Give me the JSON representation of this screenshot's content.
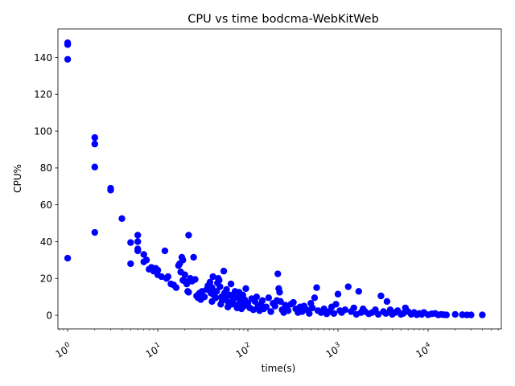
{
  "chart_data": {
    "type": "scatter",
    "title": "CPU vs time bodcma-WebKitWeb",
    "xlabel": "time(s)",
    "ylabel": "CPU%",
    "xscale": "log",
    "xlim": [
      0.78,
      65000
    ],
    "ylim": [
      -7.4,
      155.5
    ],
    "x_ticks": [
      {
        "value": 1,
        "label": "10^0"
      },
      {
        "value": 10,
        "label": "10^1"
      },
      {
        "value": 100,
        "label": "10^2"
      },
      {
        "value": 1000,
        "label": "10^3"
      },
      {
        "value": 10000,
        "label": "10^4"
      }
    ],
    "y_ticks": [
      0,
      20,
      40,
      60,
      80,
      100,
      120,
      140
    ],
    "grid": false,
    "marker_color": "#0000ff",
    "points": [
      [
        1,
        148
      ],
      [
        1,
        147
      ],
      [
        1,
        139
      ],
      [
        1,
        31
      ],
      [
        2,
        96.5
      ],
      [
        2,
        93
      ],
      [
        2,
        80.5
      ],
      [
        2,
        45
      ],
      [
        3,
        69
      ],
      [
        3,
        68
      ],
      [
        4,
        52.5
      ],
      [
        5,
        39.5
      ],
      [
        5,
        28
      ],
      [
        6,
        43.5
      ],
      [
        6,
        40
      ],
      [
        6,
        36
      ],
      [
        6,
        35
      ],
      [
        7,
        33
      ],
      [
        7,
        29
      ],
      [
        7.5,
        30
      ],
      [
        8,
        25
      ],
      [
        8.5,
        26
      ],
      [
        9,
        24
      ],
      [
        9.5,
        25.5
      ],
      [
        10,
        22
      ],
      [
        10,
        24.5
      ],
      [
        11,
        21
      ],
      [
        12,
        35
      ],
      [
        12.5,
        20
      ],
      [
        13,
        21
      ],
      [
        14,
        17
      ],
      [
        15,
        16.5
      ],
      [
        16,
        15
      ],
      [
        17,
        27
      ],
      [
        17.5,
        28
      ],
      [
        18,
        23.5
      ],
      [
        18.5,
        31.5
      ],
      [
        19,
        30
      ],
      [
        19,
        19
      ],
      [
        20,
        18.5
      ],
      [
        20,
        22
      ],
      [
        21,
        17
      ],
      [
        21.5,
        13
      ],
      [
        22,
        12.5
      ],
      [
        22,
        43.5
      ],
      [
        23,
        20
      ],
      [
        24,
        18.5
      ],
      [
        25,
        31.5
      ],
      [
        26,
        19.5
      ],
      [
        27,
        10.5
      ],
      [
        28,
        9.5
      ],
      [
        29,
        12
      ],
      [
        30,
        8.5
      ],
      [
        31,
        13
      ],
      [
        33,
        10
      ],
      [
        35,
        14
      ],
      [
        36,
        16
      ],
      [
        38,
        18
      ],
      [
        39,
        12
      ],
      [
        40,
        7.5
      ],
      [
        40,
        15
      ],
      [
        41,
        21
      ],
      [
        42,
        11
      ],
      [
        44,
        9.5
      ],
      [
        45,
        13
      ],
      [
        46,
        17.5
      ],
      [
        47,
        20
      ],
      [
        48,
        19
      ],
      [
        49,
        15.5
      ],
      [
        50,
        6
      ],
      [
        51,
        10
      ],
      [
        52,
        8
      ],
      [
        54,
        24
      ],
      [
        55,
        12
      ],
      [
        57,
        9
      ],
      [
        58,
        14
      ],
      [
        60,
        4.5
      ],
      [
        61,
        7
      ],
      [
        63,
        11
      ],
      [
        65,
        17
      ],
      [
        66,
        6
      ],
      [
        68,
        8
      ],
      [
        70,
        10
      ],
      [
        72,
        13
      ],
      [
        74,
        5.5
      ],
      [
        76,
        4
      ],
      [
        78,
        9.5
      ],
      [
        80,
        12.5
      ],
      [
        82,
        7
      ],
      [
        85,
        3.5
      ],
      [
        88,
        11
      ],
      [
        90,
        5
      ],
      [
        92,
        8.5
      ],
      [
        95,
        14.5
      ],
      [
        100,
        6.5
      ],
      [
        105,
        4
      ],
      [
        110,
        9
      ],
      [
        115,
        3
      ],
      [
        120,
        7.5
      ],
      [
        125,
        10
      ],
      [
        130,
        5
      ],
      [
        135,
        2.5
      ],
      [
        140,
        6
      ],
      [
        145,
        8
      ],
      [
        150,
        3.5
      ],
      [
        160,
        4.5
      ],
      [
        170,
        9.5
      ],
      [
        180,
        2
      ],
      [
        190,
        6.5
      ],
      [
        200,
        5
      ],
      [
        210,
        8
      ],
      [
        215,
        22.5
      ],
      [
        220,
        14.5
      ],
      [
        225,
        12.5
      ],
      [
        230,
        7.5
      ],
      [
        240,
        3
      ],
      [
        250,
        1.5
      ],
      [
        260,
        5.5
      ],
      [
        270,
        4
      ],
      [
        280,
        2.5
      ],
      [
        300,
        6
      ],
      [
        320,
        7
      ],
      [
        340,
        3.5
      ],
      [
        360,
        1.5
      ],
      [
        380,
        4.5
      ],
      [
        400,
        2
      ],
      [
        420,
        5
      ],
      [
        450,
        3
      ],
      [
        480,
        1
      ],
      [
        500,
        6.5
      ],
      [
        520,
        4
      ],
      [
        550,
        9.5
      ],
      [
        580,
        15
      ],
      [
        600,
        2.5
      ],
      [
        650,
        1.5
      ],
      [
        700,
        3.5
      ],
      [
        750,
        0.8
      ],
      [
        800,
        2
      ],
      [
        850,
        4.5
      ],
      [
        900,
        1
      ],
      [
        950,
        6
      ],
      [
        1000,
        11.5
      ],
      [
        1050,
        2.5
      ],
      [
        1100,
        1.5
      ],
      [
        1200,
        3
      ],
      [
        1300,
        15.5
      ],
      [
        1400,
        2
      ],
      [
        1500,
        4
      ],
      [
        1600,
        0.5
      ],
      [
        1700,
        13
      ],
      [
        1800,
        1.5
      ],
      [
        1900,
        3.5
      ],
      [
        2000,
        2
      ],
      [
        2200,
        0.8
      ],
      [
        2400,
        1.5
      ],
      [
        2600,
        3
      ],
      [
        2800,
        0.5
      ],
      [
        3000,
        10.5
      ],
      [
        3200,
        2
      ],
      [
        3400,
        1
      ],
      [
        3500,
        7.5
      ],
      [
        3800,
        3
      ],
      [
        4000,
        0.5
      ],
      [
        4300,
        1.5
      ],
      [
        4600,
        2.5
      ],
      [
        5000,
        0.5
      ],
      [
        5300,
        1
      ],
      [
        5600,
        4
      ],
      [
        6000,
        2
      ],
      [
        6500,
        0.5
      ],
      [
        7000,
        1.5
      ],
      [
        7500,
        0.3
      ],
      [
        8000,
        1
      ],
      [
        8500,
        0.5
      ],
      [
        9000,
        1.5
      ],
      [
        10000,
        0.3
      ],
      [
        11000,
        0.8
      ],
      [
        12000,
        1
      ],
      [
        13000,
        0.2
      ],
      [
        14000,
        0.5
      ],
      [
        15000,
        0.3
      ],
      [
        16000,
        0.2
      ],
      [
        20000,
        0.5
      ],
      [
        24000,
        0.3
      ],
      [
        27000,
        0.2
      ],
      [
        30000,
        0.2
      ],
      [
        40000,
        0.2
      ]
    ]
  }
}
